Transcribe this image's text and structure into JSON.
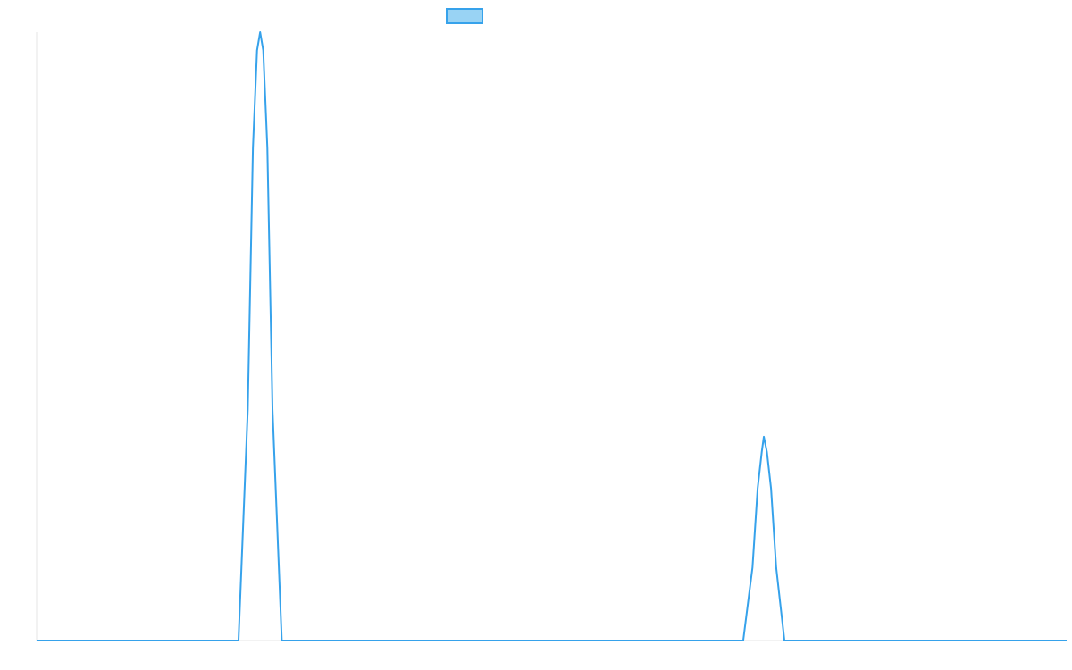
{
  "colors": {
    "series_line": "#36a2eb",
    "legend_fill": "#99d3f4",
    "axis": "#e6e6e6",
    "background": "#ffffff"
  },
  "chart_data": {
    "type": "line",
    "title": "",
    "xlabel": "",
    "ylabel": "",
    "grid": false,
    "legend": {
      "placement": "top-center",
      "entries": [
        {
          "label": ""
        }
      ]
    },
    "xlim": [
      0,
      100
    ],
    "ylim": [
      0,
      1
    ],
    "series": [
      {
        "x": [
          0,
          19.6,
          20.5,
          21,
          21.4,
          21.7,
          22.0,
          22.4,
          22.9,
          23.8,
          100
        ],
        "y": [
          0,
          0,
          0.38,
          0.81,
          0.97,
          1.0,
          0.97,
          0.81,
          0.38,
          0,
          0
        ],
        "x_b": [
          0,
          68.6,
          69.5,
          70.0,
          70.4,
          70.6,
          70.9,
          71.3,
          71.8,
          72.6,
          100
        ]
      }
    ]
  }
}
